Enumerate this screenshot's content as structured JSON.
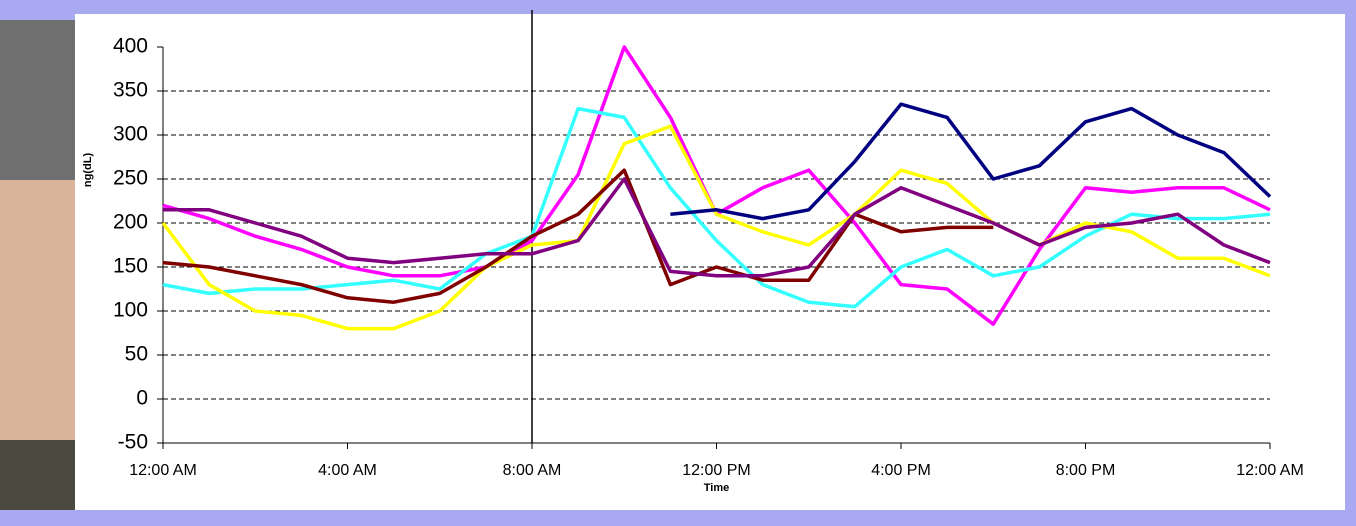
{
  "chart_data": {
    "type": "line",
    "x_label": "Time",
    "y_label": "ng(dL)",
    "x": [
      0,
      1,
      2,
      3,
      4,
      5,
      6,
      7,
      8,
      9,
      10,
      11,
      12,
      13,
      14,
      15,
      16,
      17,
      18,
      19,
      20,
      21,
      22,
      23,
      24
    ],
    "series": [
      {
        "color": "#ff00ff",
        "values": [
          220,
          205,
          185,
          170,
          150,
          140,
          140,
          150,
          180,
          255,
          400,
          320,
          210,
          240,
          260,
          200,
          130,
          125,
          85,
          170,
          240,
          235,
          240,
          240,
          215
        ]
      },
      {
        "color": "#33ffff",
        "values": [
          130,
          120,
          125,
          125,
          130,
          135,
          125,
          165,
          185,
          330,
          320,
          240,
          180,
          130,
          110,
          105,
          150,
          170,
          140,
          150,
          185,
          210,
          205,
          205,
          210
        ]
      },
      {
        "color": "#ffff00",
        "values": [
          200,
          130,
          100,
          95,
          80,
          80,
          100,
          150,
          175,
          180,
          290,
          310,
          210,
          190,
          175,
          210,
          260,
          245,
          200,
          175,
          200,
          190,
          160,
          160,
          140
        ]
      },
      {
        "color": "#800000",
        "values": [
          155,
          150,
          140,
          130,
          115,
          110,
          120,
          150,
          185,
          210,
          260,
          130,
          150,
          135,
          135,
          210,
          190,
          195,
          195,
          null,
          null,
          null,
          null,
          null,
          null
        ]
      },
      {
        "color": "#800080",
        "values": [
          215,
          215,
          200,
          185,
          160,
          155,
          160,
          165,
          165,
          180,
          250,
          145,
          140,
          140,
          150,
          210,
          240,
          220,
          200,
          175,
          195,
          200,
          210,
          175,
          155
        ]
      },
      {
        "color": "#000080",
        "values": [
          null,
          null,
          null,
          null,
          null,
          null,
          null,
          null,
          null,
          null,
          null,
          210,
          215,
          205,
          215,
          270,
          335,
          320,
          250,
          265,
          315,
          330,
          300,
          280,
          230
        ]
      }
    ],
    "xlim": [
      0,
      24
    ],
    "xticks": [
      {
        "value": 0,
        "label": "12:00 AM"
      },
      {
        "value": 4,
        "label": "4:00 AM"
      },
      {
        "value": 8,
        "label": "8:00 AM"
      },
      {
        "value": 12,
        "label": "12:00 PM"
      },
      {
        "value": 16,
        "label": "4:00 PM"
      },
      {
        "value": 20,
        "label": "8:00 PM"
      },
      {
        "value": 24,
        "label": "12:00 AM"
      }
    ],
    "ylim": [
      -50,
      400
    ],
    "yticks": [
      -50,
      0,
      50,
      100,
      150,
      200,
      250,
      300,
      350,
      400
    ],
    "grid": true,
    "marker_line_x": 8
  }
}
